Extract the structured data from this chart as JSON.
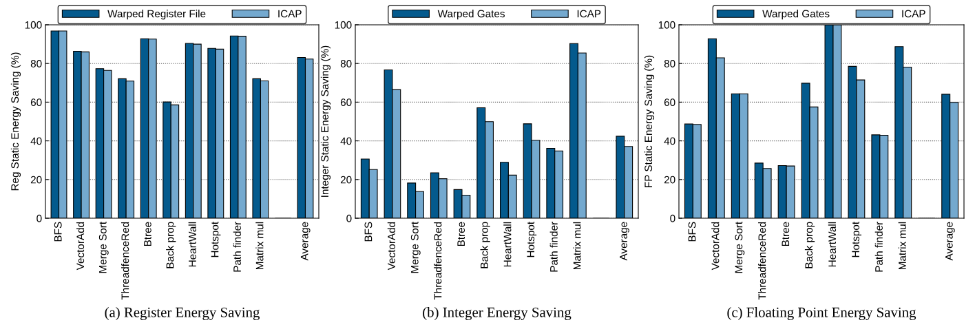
{
  "chart_data": [
    {
      "type": "bar",
      "ylabel": "Reg Static Energy Saving (%)",
      "categories": [
        "BFS",
        "VectorAdd",
        "Merge Sort",
        "ThreadfenceRed",
        "Btree",
        "Back prop",
        "HeartWall",
        "Hotspot",
        "Path finder",
        "Matrix mul",
        null,
        "Average"
      ],
      "series": [
        {
          "name": "Warped Register File",
          "color": "#045a8d",
          "values": [
            96.8,
            86.3,
            77.3,
            72.1,
            92.8,
            60.1,
            90.4,
            87.8,
            94.2,
            72.1,
            0,
            83.1
          ]
        },
        {
          "name": "ICAP",
          "color": "#74a9cf",
          "values": [
            96.8,
            86.0,
            76.4,
            70.9,
            92.6,
            58.6,
            90.0,
            87.4,
            94.1,
            71.0,
            0,
            82.3
          ]
        }
      ],
      "ylim": [
        0,
        100
      ],
      "yticks": [
        0,
        20,
        40,
        60,
        80,
        100
      ],
      "grid": "y",
      "legend": "top",
      "annotations": [
        "(a) Register Energy Saving"
      ]
    },
    {
      "type": "bar",
      "ylabel": "Integer Static Energy Saving (%)",
      "categories": [
        "BFS",
        "VectorAdd",
        "Merge Sort",
        "ThreadfenceRed",
        "Btree",
        "Back prop",
        "HeartWall",
        "Hotspot",
        "Path finder",
        "Matrix mul",
        null,
        "Average"
      ],
      "series": [
        {
          "name": "Warped Gates",
          "color": "#045a8d",
          "values": [
            30.6,
            76.7,
            18.2,
            23.5,
            14.8,
            57.1,
            28.9,
            48.8,
            36.1,
            90.3,
            0,
            42.4
          ]
        },
        {
          "name": "ICAP",
          "color": "#74a9cf",
          "values": [
            25.2,
            66.5,
            13.8,
            20.4,
            11.9,
            49.9,
            22.3,
            40.3,
            34.8,
            85.4,
            0,
            37.1
          ]
        }
      ],
      "ylim": [
        0,
        100
      ],
      "yticks": [
        0,
        20,
        40,
        60,
        80,
        100
      ],
      "grid": "y",
      "legend": "top",
      "annotations": [
        "(b) Integer Energy Saving"
      ]
    },
    {
      "type": "bar",
      "ylabel": "FP Static Energy Saving (%)",
      "categories": [
        "BFS",
        "VectorAdd",
        "Merge Sort",
        "ThreadfenceRed",
        "Btree",
        "Back prop",
        "HeartWall",
        "Hotspot",
        "Path finder",
        "Matrix mul",
        null,
        "Average"
      ],
      "series": [
        {
          "name": "Warped Gates",
          "color": "#045a8d",
          "values": [
            48.7,
            92.8,
            64.3,
            28.5,
            27.2,
            69.8,
            100,
            78.5,
            43.1,
            88.7,
            0,
            64.1
          ]
        },
        {
          "name": "ICAP",
          "color": "#74a9cf",
          "values": [
            48.5,
            82.9,
            64.3,
            25.7,
            27.0,
            57.5,
            100,
            71.5,
            42.9,
            78.1,
            0,
            59.9
          ]
        }
      ],
      "ylim": [
        0,
        100
      ],
      "yticks": [
        0,
        20,
        40,
        60,
        80,
        100
      ],
      "grid": "y",
      "legend": "top",
      "annotations": [
        "(c) Floating Point Energy Saving"
      ]
    }
  ]
}
